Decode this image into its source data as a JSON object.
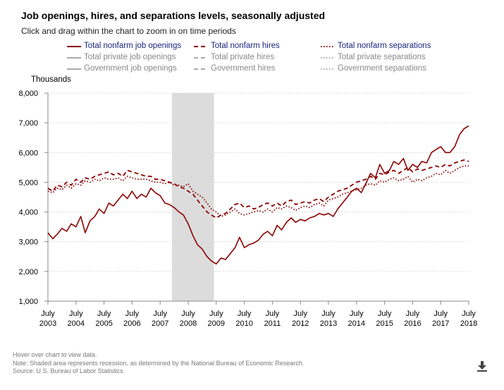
{
  "title": "Job openings, hires, and separations levels, seasonally adjusted",
  "subtitle": "Click and drag within the chart to zoom in on time periods",
  "legend": [
    {
      "label": "Total nonfarm job openings",
      "color": "#8b0000",
      "dash": "solid",
      "text_color": "#1a237e"
    },
    {
      "label": "Total nonfarm hires",
      "color": "#8b0000",
      "dash": "dashed",
      "text_color": "#1a237e"
    },
    {
      "label": "Total nonfarm separations",
      "color": "#8b0000",
      "dash": "dotted",
      "text_color": "#1a237e"
    },
    {
      "label": "Total private job openings",
      "color": "#aaaaaa",
      "dash": "solid",
      "text_color": "#888888"
    },
    {
      "label": "Total private hires",
      "color": "#aaaaaa",
      "dash": "dashed",
      "text_color": "#888888"
    },
    {
      "label": "Total private separations",
      "color": "#aaaaaa",
      "dash": "dotted",
      "text_color": "#888888"
    },
    {
      "label": "Government job openings",
      "color": "#aaaaaa",
      "dash": "solid",
      "text_color": "#888888"
    },
    {
      "label": "Government hires",
      "color": "#aaaaaa",
      "dash": "dashed",
      "text_color": "#888888"
    },
    {
      "label": "Government separations",
      "color": "#aaaaaa",
      "dash": "dotted",
      "text_color": "#888888"
    }
  ],
  "chart_data": {
    "type": "line",
    "ylabel": "Thousands",
    "ylim": [
      1000,
      8000
    ],
    "yticks": [
      "1,000",
      "2,000",
      "3,000",
      "4,000",
      "5,000",
      "6,000",
      "7,000",
      "8,000"
    ],
    "xlim": [
      2003.5,
      2018.5
    ],
    "xticks": [
      {
        "month": "July",
        "year": "2003"
      },
      {
        "month": "July",
        "year": "2004"
      },
      {
        "month": "July",
        "year": "2005"
      },
      {
        "month": "July",
        "year": "2006"
      },
      {
        "month": "July",
        "year": "2007"
      },
      {
        "month": "July",
        "year": "2008"
      },
      {
        "month": "July",
        "year": "2009"
      },
      {
        "month": "July",
        "year": "2010"
      },
      {
        "month": "July",
        "year": "2011"
      },
      {
        "month": "July",
        "year": "2012"
      },
      {
        "month": "July",
        "year": "2013"
      },
      {
        "month": "July",
        "year": "2014"
      },
      {
        "month": "July",
        "year": "2015"
      },
      {
        "month": "July",
        "year": "2016"
      },
      {
        "month": "July",
        "year": "2017"
      },
      {
        "month": "July",
        "year": "2018"
      }
    ],
    "recession": [
      2007.92,
      2009.42
    ],
    "grid": true,
    "series": [
      {
        "name": "Total nonfarm job openings",
        "style": "solid",
        "color": "#8b0000",
        "x": [
          2003.5,
          2003.67,
          2003.83,
          2004.0,
          2004.17,
          2004.33,
          2004.5,
          2004.67,
          2004.83,
          2005.0,
          2005.17,
          2005.33,
          2005.5,
          2005.67,
          2005.83,
          2006.0,
          2006.17,
          2006.33,
          2006.5,
          2006.67,
          2006.83,
          2007.0,
          2007.17,
          2007.33,
          2007.5,
          2007.67,
          2007.83,
          2008.0,
          2008.17,
          2008.33,
          2008.5,
          2008.67,
          2008.83,
          2009.0,
          2009.17,
          2009.33,
          2009.5,
          2009.67,
          2009.83,
          2010.0,
          2010.17,
          2010.33,
          2010.5,
          2010.67,
          2010.83,
          2011.0,
          2011.17,
          2011.33,
          2011.5,
          2011.67,
          2011.83,
          2012.0,
          2012.17,
          2012.33,
          2012.5,
          2012.67,
          2012.83,
          2013.0,
          2013.17,
          2013.33,
          2013.5,
          2013.67,
          2013.83,
          2014.0,
          2014.17,
          2014.33,
          2014.5,
          2014.67,
          2014.83,
          2015.0,
          2015.17,
          2015.33,
          2015.5,
          2015.67,
          2015.83,
          2016.0,
          2016.17,
          2016.33,
          2016.5,
          2016.67,
          2016.83,
          2017.0,
          2017.17,
          2017.33,
          2017.5,
          2017.67,
          2017.83,
          2018.0,
          2018.17,
          2018.33,
          2018.5
        ],
        "values": [
          3300,
          3100,
          3250,
          3450,
          3350,
          3600,
          3500,
          3850,
          3300,
          3700,
          3850,
          4100,
          3950,
          4300,
          4200,
          4400,
          4600,
          4450,
          4700,
          4450,
          4600,
          4500,
          4800,
          4650,
          4550,
          4300,
          4250,
          4150,
          4000,
          3900,
          3600,
          3200,
          2900,
          2750,
          2500,
          2350,
          2250,
          2450,
          2400,
          2600,
          2800,
          3150,
          2800,
          2900,
          2950,
          3050,
          3250,
          3350,
          3200,
          3550,
          3400,
          3650,
          3800,
          3650,
          3750,
          3700,
          3800,
          3850,
          3950,
          3900,
          3950,
          3850,
          4100,
          4300,
          4500,
          4700,
          4800,
          4650,
          4950,
          5300,
          5150,
          5600,
          5300,
          5400,
          5700,
          5600,
          5800,
          5400,
          5600,
          5500,
          5700,
          5650,
          6000,
          6100,
          6200,
          6000,
          6000,
          6200,
          6600,
          6800,
          6900
        ]
      },
      {
        "name": "Total nonfarm hires",
        "style": "dashed",
        "color": "#8b0000",
        "x": [
          2003.5,
          2003.67,
          2003.83,
          2004.0,
          2004.17,
          2004.33,
          2004.5,
          2004.67,
          2004.83,
          2005.0,
          2005.17,
          2005.33,
          2005.5,
          2005.67,
          2005.83,
          2006.0,
          2006.17,
          2006.33,
          2006.5,
          2006.67,
          2006.83,
          2007.0,
          2007.17,
          2007.33,
          2007.5,
          2007.67,
          2007.83,
          2008.0,
          2008.17,
          2008.33,
          2008.5,
          2008.67,
          2008.83,
          2009.0,
          2009.17,
          2009.33,
          2009.5,
          2009.67,
          2009.83,
          2010.0,
          2010.17,
          2010.33,
          2010.5,
          2010.67,
          2010.83,
          2011.0,
          2011.17,
          2011.33,
          2011.5,
          2011.67,
          2011.83,
          2012.0,
          2012.17,
          2012.33,
          2012.5,
          2012.67,
          2012.83,
          2013.0,
          2013.17,
          2013.33,
          2013.5,
          2013.67,
          2013.83,
          2014.0,
          2014.17,
          2014.33,
          2014.5,
          2014.67,
          2014.83,
          2015.0,
          2015.17,
          2015.33,
          2015.5,
          2015.67,
          2015.83,
          2016.0,
          2016.17,
          2016.33,
          2016.5,
          2016.67,
          2016.83,
          2017.0,
          2017.17,
          2017.33,
          2017.5,
          2017.67,
          2017.83,
          2018.0,
          2018.17,
          2018.33,
          2018.5
        ],
        "values": [
          4800,
          4700,
          4900,
          4850,
          5000,
          4900,
          5100,
          5000,
          5150,
          5100,
          5200,
          5250,
          5300,
          5350,
          5250,
          5300,
          5200,
          5400,
          5350,
          5300,
          5250,
          5200,
          5200,
          5100,
          5100,
          5050,
          5000,
          4950,
          4850,
          4800,
          4700,
          4600,
          4400,
          4200,
          4000,
          3900,
          3800,
          3900,
          3950,
          4100,
          4250,
          4300,
          4150,
          4200,
          4100,
          4150,
          4250,
          4300,
          4200,
          4300,
          4200,
          4350,
          4400,
          4250,
          4300,
          4350,
          4300,
          4400,
          4450,
          4350,
          4500,
          4600,
          4700,
          4750,
          4800,
          4900,
          5000,
          5050,
          5100,
          5200,
          5100,
          5300,
          5250,
          5350,
          5400,
          5300,
          5400,
          5500,
          5350,
          5450,
          5400,
          5450,
          5500,
          5550,
          5500,
          5600,
          5550,
          5650,
          5700,
          5750,
          5700
        ]
      },
      {
        "name": "Total nonfarm separations",
        "style": "dotted",
        "color": "#8b0000",
        "x": [
          2003.5,
          2003.67,
          2003.83,
          2004.0,
          2004.17,
          2004.33,
          2004.5,
          2004.67,
          2004.83,
          2005.0,
          2005.17,
          2005.33,
          2005.5,
          2005.67,
          2005.83,
          2006.0,
          2006.17,
          2006.33,
          2006.5,
          2006.67,
          2006.83,
          2007.0,
          2007.17,
          2007.33,
          2007.5,
          2007.67,
          2007.83,
          2008.0,
          2008.17,
          2008.33,
          2008.5,
          2008.67,
          2008.83,
          2009.0,
          2009.17,
          2009.33,
          2009.5,
          2009.67,
          2009.83,
          2010.0,
          2010.17,
          2010.33,
          2010.5,
          2010.67,
          2010.83,
          2011.0,
          2011.17,
          2011.33,
          2011.5,
          2011.67,
          2011.83,
          2012.0,
          2012.17,
          2012.33,
          2012.5,
          2012.67,
          2012.83,
          2013.0,
          2013.17,
          2013.33,
          2013.5,
          2013.67,
          2013.83,
          2014.0,
          2014.17,
          2014.33,
          2014.5,
          2014.67,
          2014.83,
          2015.0,
          2015.17,
          2015.33,
          2015.5,
          2015.67,
          2015.83,
          2016.0,
          2016.17,
          2016.33,
          2016.5,
          2016.67,
          2016.83,
          2017.0,
          2017.17,
          2017.33,
          2017.5,
          2017.67,
          2017.83,
          2018.0,
          2018.17,
          2018.33,
          2018.5
        ],
        "values": [
          4700,
          4650,
          4800,
          4750,
          4900,
          4800,
          4950,
          4900,
          5050,
          5000,
          5100,
          5050,
          5150,
          5100,
          5100,
          5150,
          5050,
          5200,
          5150,
          5100,
          5100,
          5100,
          5050,
          5000,
          5000,
          4950,
          5000,
          4900,
          4900,
          4850,
          4950,
          4700,
          4600,
          4500,
          4300,
          4100,
          4000,
          3850,
          3900,
          4000,
          4100,
          3950,
          3900,
          3950,
          4000,
          4050,
          4000,
          4100,
          4000,
          4150,
          4100,
          4200,
          4150,
          4050,
          4150,
          4200,
          4150,
          4250,
          4300,
          4200,
          4400,
          4450,
          4500,
          4600,
          4650,
          4700,
          4750,
          4800,
          4900,
          4950,
          4900,
          5050,
          5000,
          5100,
          5150,
          5050,
          5100,
          5200,
          5000,
          5100,
          5050,
          5150,
          5200,
          5300,
          5250,
          5400,
          5300,
          5400,
          5500,
          5550,
          5550
        ]
      }
    ]
  },
  "notes": [
    "Hover over chart to view data.",
    "Note: Shaded area represents recession, as determined by the National Bureau of Economic Research.",
    "Source: U.S. Bureau of Labor Statistics."
  ]
}
